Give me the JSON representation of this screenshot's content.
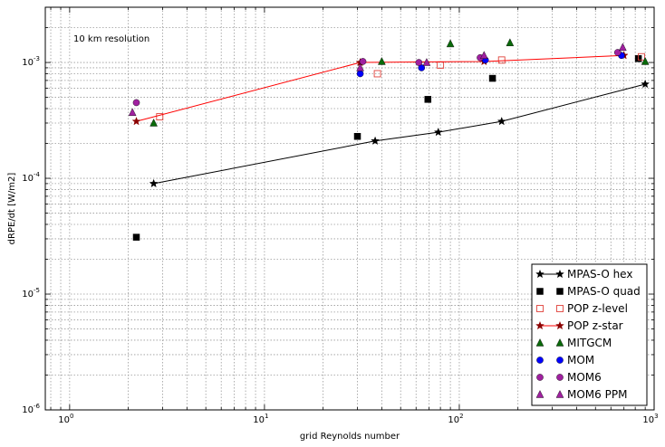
{
  "chart_data": {
    "type": "scatter",
    "xscale": "log",
    "yscale": "log",
    "xlim": [
      0.75,
      1000
    ],
    "ylim": [
      1e-06,
      0.003
    ],
    "xlabel": "grid Reynolds number",
    "ylabel": "dRPE/dt [W/m2]",
    "annotation": "10 km resolution",
    "grid": true,
    "legend_position": "lower right",
    "x_ticks": [
      {
        "value": 1,
        "base": "10",
        "exp": "0"
      },
      {
        "value": 10,
        "base": "10",
        "exp": "1"
      },
      {
        "value": 100,
        "base": "10",
        "exp": "2"
      },
      {
        "value": 1000,
        "base": "10",
        "exp": "3"
      }
    ],
    "y_ticks": [
      {
        "value": 1e-06,
        "base": "10",
        "exp": "-6"
      },
      {
        "value": 1e-05,
        "base": "10",
        "exp": "-5"
      },
      {
        "value": 0.0001,
        "base": "10",
        "exp": "-4"
      },
      {
        "value": 0.001,
        "base": "10",
        "exp": "-3"
      }
    ],
    "series": [
      {
        "name": "MPAS-O hex",
        "color": "#000000",
        "marker": "star",
        "line": true,
        "fill": true,
        "x": [
          2.7,
          37,
          78,
          165,
          900
        ],
        "y": [
          9e-05,
          0.00021,
          0.00025,
          0.00031,
          0.00065
        ]
      },
      {
        "name": "MPAS-O quad",
        "color": "#000000",
        "marker": "square",
        "line": false,
        "fill": true,
        "x": [
          2.2,
          30,
          69,
          148,
          830
        ],
        "y": [
          3.1e-05,
          0.00023,
          0.00048,
          0.00073,
          0.00108
        ]
      },
      {
        "name": "POP z-level",
        "color": "#e0423b",
        "marker": "square",
        "line": false,
        "fill": false,
        "x": [
          2.9,
          38,
          80,
          165,
          860
        ],
        "y": [
          0.00034,
          0.0008,
          0.00095,
          0.00105,
          0.00112
        ]
      },
      {
        "name": "POP z-star",
        "color": "#8b0000",
        "marker": "star",
        "line": true,
        "fill": true,
        "line_color": "#ff0000",
        "x": [
          2.2,
          31,
          134,
          700
        ],
        "y": [
          0.00031,
          0.001,
          0.00102,
          0.00115
        ]
      },
      {
        "name": "MITGCM",
        "color": "#0a6a0a",
        "marker": "triangle",
        "line": false,
        "fill": true,
        "x": [
          2.7,
          40,
          90,
          182,
          900
        ],
        "y": [
          0.0003,
          0.00102,
          0.00145,
          0.00148,
          0.00102
        ]
      },
      {
        "name": "MOM",
        "color": "#0000ff",
        "marker": "circle",
        "line": false,
        "fill": true,
        "x": [
          31,
          64,
          136,
          680
        ],
        "y": [
          0.0008,
          0.0009,
          0.00105,
          0.00115
        ]
      },
      {
        "name": "MOM6",
        "color": "#a020a0",
        "marker": "circle",
        "line": false,
        "fill": true,
        "x": [
          2.2,
          32,
          62,
          128,
          650
        ],
        "y": [
          0.00045,
          0.00102,
          0.001,
          0.0011,
          0.00122
        ]
      },
      {
        "name": "MOM6 PPM",
        "color": "#a020a0",
        "marker": "triangle",
        "line": false,
        "fill": true,
        "x": [
          2.1,
          31,
          68,
          134,
          690
        ],
        "y": [
          0.00037,
          0.0009,
          0.001,
          0.00115,
          0.00135
        ]
      }
    ]
  }
}
